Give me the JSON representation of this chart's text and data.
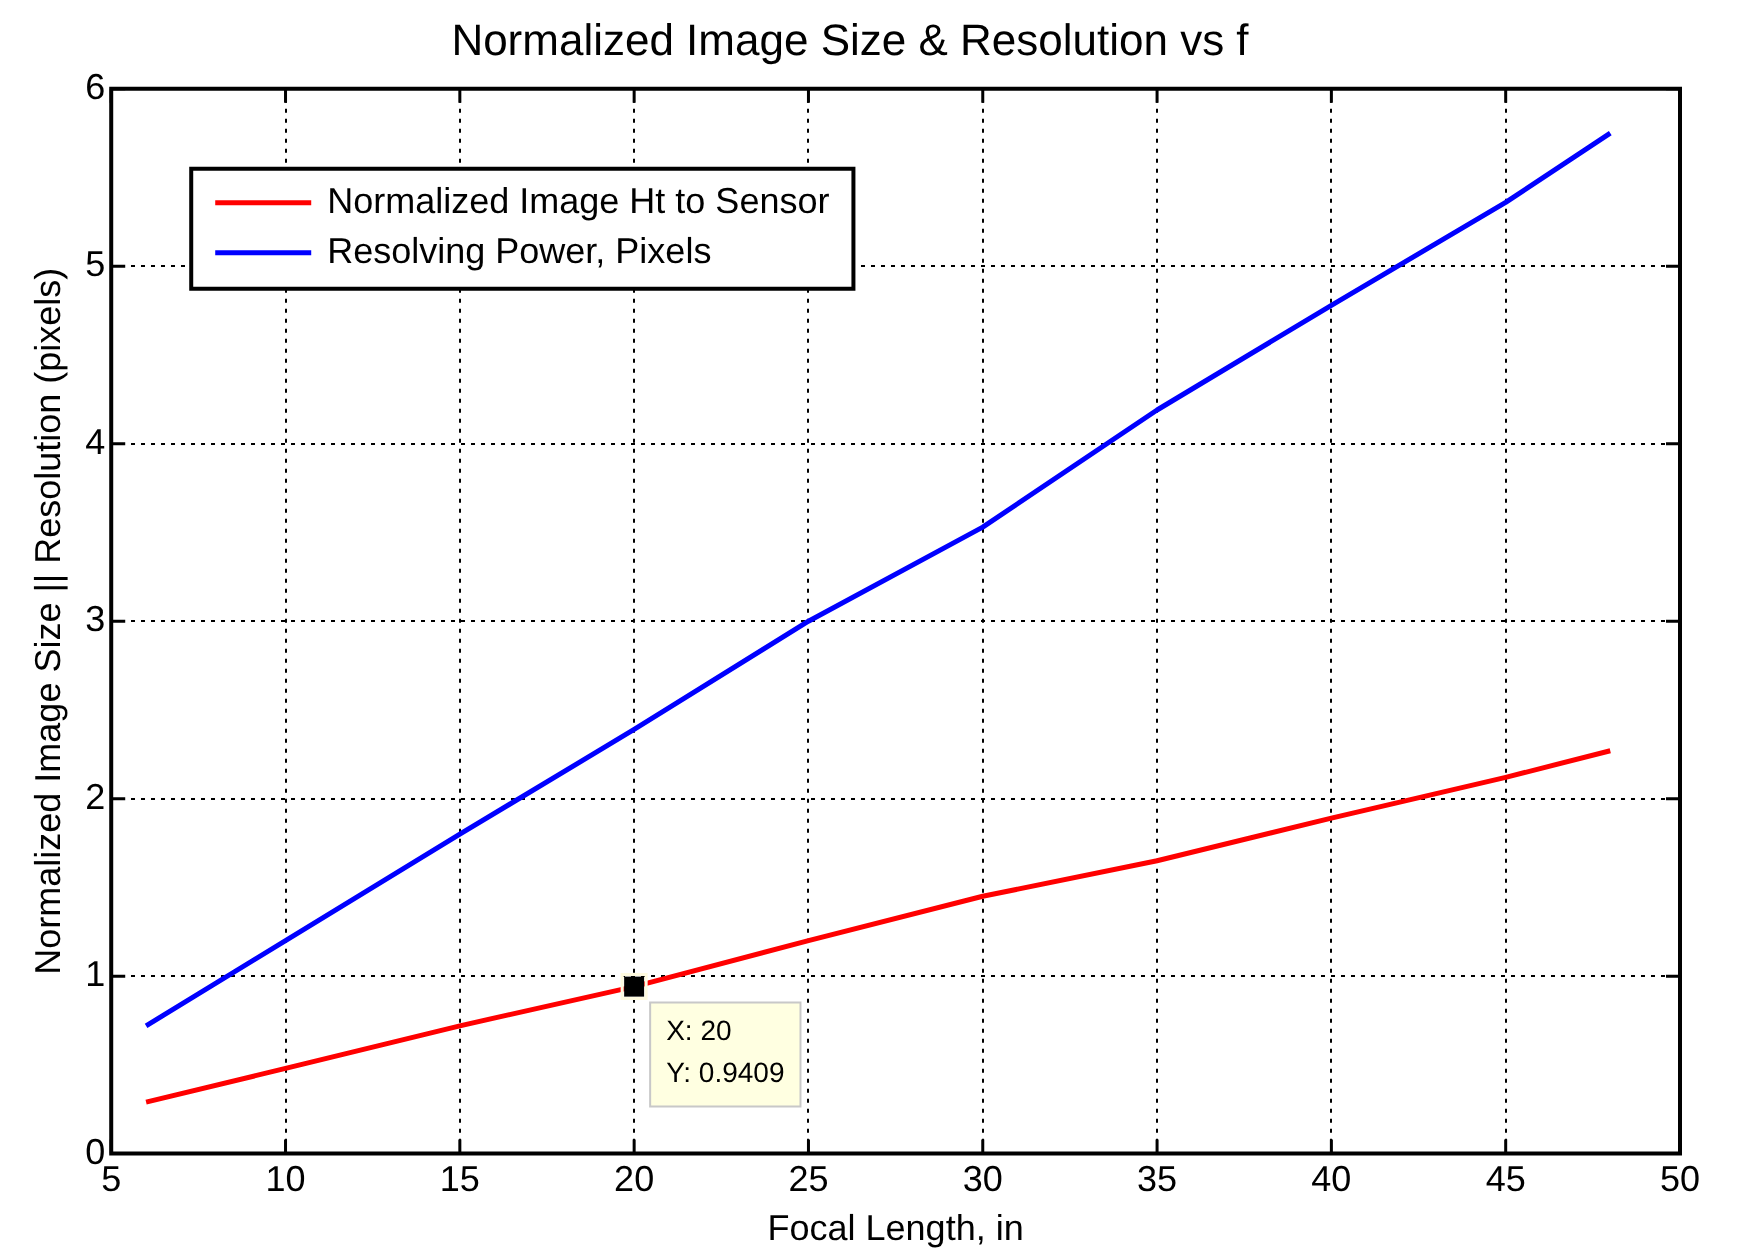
{
  "chart_data": {
    "type": "line",
    "title": "Normalized Image Size & Resolution vs f",
    "xlabel": "Focal Length, in",
    "ylabel": "Normalized Image Size || Resolution (pixels)",
    "x": [
      6,
      10,
      15,
      20,
      25,
      30,
      35,
      40,
      45,
      48
    ],
    "series": [
      {
        "name": "Normalized Image Ht to Sensor",
        "color": "#ff0000",
        "values": [
          0.29,
          0.48,
          0.72,
          0.9409,
          1.2,
          1.45,
          1.65,
          1.89,
          2.12,
          2.27
        ]
      },
      {
        "name": "Resolving Power, Pixels",
        "color": "#0000ff",
        "values": [
          0.72,
          1.2,
          1.8,
          2.39,
          3.0,
          3.53,
          4.19,
          4.78,
          5.36,
          5.75
        ]
      }
    ],
    "xlim": [
      5,
      50
    ],
    "xticks": [
      5,
      10,
      15,
      20,
      25,
      30,
      35,
      40,
      45,
      50
    ],
    "ylim": [
      0,
      6
    ],
    "yticks": [
      0,
      1,
      2,
      3,
      4,
      5,
      6
    ],
    "grid": true,
    "legend": "top left",
    "marker": "none",
    "line_style": "solid",
    "annotations": [
      {
        "text": "X: 20\nY: 0.9409",
        "x": 20,
        "y": 0.9409
      }
    ]
  }
}
